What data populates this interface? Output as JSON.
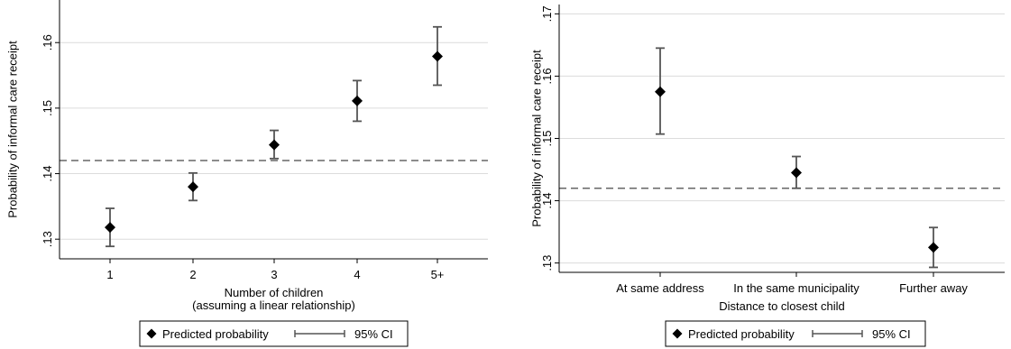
{
  "colors": {
    "marker": "#000000",
    "ci": "#555555",
    "grid": "#dcdcdc",
    "axis": "#000000",
    "reference": "#666666"
  },
  "chart_data": [
    {
      "type": "scatter",
      "title": "",
      "xlabel_lines": [
        "Number of children",
        "(assuming a linear relationship)"
      ],
      "ylabel": "Probability of informal care receipt",
      "categories": [
        "1",
        "2",
        "3",
        "4",
        "5+"
      ],
      "ylim": [
        0.127,
        0.1665
      ],
      "yticks": [
        0.13,
        0.14,
        0.15,
        0.16
      ],
      "ytick_labels": [
        ".13",
        ".14",
        ".15",
        ".16"
      ],
      "grid": true,
      "reference_line": 0.142,
      "legend": {
        "position": "bottom",
        "entries": [
          "Predicted probability",
          "95% CI"
        ]
      },
      "series": [
        {
          "name": "Predicted probability",
          "values": [
            0.1318,
            0.138,
            0.1444,
            0.1511,
            0.1579
          ],
          "ci_low": [
            0.1289,
            0.1359,
            0.1423,
            0.148,
            0.1535
          ],
          "ci_high": [
            0.1347,
            0.1401,
            0.1466,
            0.1542,
            0.1624
          ]
        }
      ]
    },
    {
      "type": "scatter",
      "title": "",
      "xlabel_lines": [
        "Distance to closest child"
      ],
      "ylabel": "Probability of informal care receipt",
      "categories": [
        "At same address",
        "In the same municipality",
        "Further away"
      ],
      "ylim": [
        0.1285,
        0.1715
      ],
      "yticks": [
        0.13,
        0.14,
        0.15,
        0.16,
        0.17
      ],
      "ytick_labels": [
        ".13",
        ".14",
        ".15",
        ".16",
        ".17"
      ],
      "grid": true,
      "reference_line": 0.142,
      "legend": {
        "position": "bottom",
        "entries": [
          "Predicted probability",
          "95% CI"
        ]
      },
      "series": [
        {
          "name": "Predicted probability",
          "values": [
            0.1575,
            0.1445,
            0.1325
          ],
          "ci_low": [
            0.1507,
            0.142,
            0.1293
          ],
          "ci_high": [
            0.1645,
            0.1471,
            0.1357
          ]
        }
      ]
    }
  ]
}
